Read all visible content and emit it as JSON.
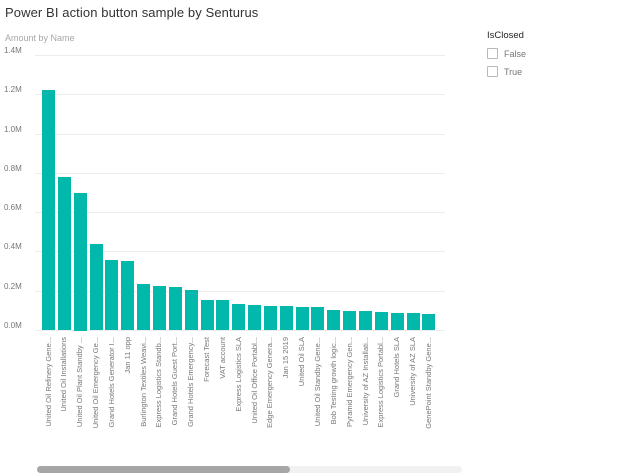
{
  "page": {
    "title": "Power BI action button sample by Senturus"
  },
  "slicer": {
    "title": "IsClosed",
    "options": [
      {
        "label": "False",
        "checked": false
      },
      {
        "label": "True",
        "checked": false
      }
    ]
  },
  "colors": {
    "accent": "#01B8AA"
  },
  "chart_data": {
    "type": "bar",
    "title": "Amount by Name",
    "xlabel": "Name",
    "ylabel": "Amount",
    "unit": "M",
    "ylim": [
      0,
      1.4
    ],
    "grid": true,
    "bar_color": "#01B8AA",
    "y_ticks": [
      {
        "value": 0.0,
        "label": "0.0M"
      },
      {
        "value": 0.2,
        "label": "0.2M"
      },
      {
        "value": 0.4,
        "label": "0.4M"
      },
      {
        "value": 0.6,
        "label": "0.6M"
      },
      {
        "value": 0.8,
        "label": "0.8M"
      },
      {
        "value": 1.0,
        "label": "1.0M"
      },
      {
        "value": 1.2,
        "label": "1.2M"
      },
      {
        "value": 1.4,
        "label": "1.4M"
      }
    ],
    "categories": [
      "United Oil Refinery Gene...",
      "United Oil Installations",
      "United Oil Plant Standby ...",
      "United Oil Emergency Ge...",
      "Grand Hotels Generator I...",
      "Jan 11 opp",
      "Burlington Textiles Weavi...",
      "Express Logistics Standb...",
      "Grand Hotels Guest Port...",
      "Grand Hotels Emergency...",
      "Forecast Test",
      "VAT account",
      "Express Logistics SLA",
      "United Oil Office Portabl...",
      "Edge Emergency Genera...",
      "Jan 15 2019",
      "United Oil SLA",
      "United Oil Standby Gene...",
      "Bob Testing growth logic...",
      "Pyramid Emergency Gen...",
      "University of AZ Installati...",
      "Express Logistics Portabl...",
      "Grand Hotels SLA",
      "University of AZ SLA",
      "GenePoint Standby Gene..."
    ],
    "values": [
      1.22,
      0.78,
      0.7,
      0.44,
      0.355,
      0.35,
      0.235,
      0.225,
      0.22,
      0.205,
      0.155,
      0.152,
      0.13,
      0.128,
      0.122,
      0.12,
      0.118,
      0.115,
      0.1,
      0.099,
      0.098,
      0.09,
      0.088,
      0.086,
      0.08
    ]
  }
}
